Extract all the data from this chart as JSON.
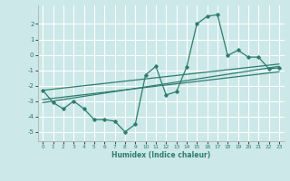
{
  "xlabel": "Humidex (Indice chaleur)",
  "background_color": "#cce8e8",
  "grid_color": "#ffffff",
  "line_color": "#2e7d6e",
  "xlim": [
    -0.5,
    23.5
  ],
  "ylim": [
    -5.6,
    3.2
  ],
  "xticks": [
    0,
    1,
    2,
    3,
    4,
    5,
    6,
    7,
    8,
    9,
    10,
    11,
    12,
    13,
    14,
    15,
    16,
    17,
    18,
    19,
    20,
    21,
    22,
    23
  ],
  "yticks": [
    -5,
    -4,
    -3,
    -2,
    -1,
    0,
    1,
    2
  ],
  "series1_x": [
    0,
    1,
    2,
    3,
    4,
    5,
    6,
    7,
    8,
    9,
    10,
    11,
    12,
    13,
    14,
    15,
    16,
    17,
    18,
    19,
    20,
    21,
    22,
    23
  ],
  "series1_y": [
    -2.3,
    -3.1,
    -3.5,
    -3.0,
    -3.5,
    -4.2,
    -4.2,
    -4.3,
    -5.0,
    -4.5,
    -1.3,
    -0.75,
    -2.6,
    -2.4,
    -0.8,
    2.0,
    2.5,
    2.6,
    -0.05,
    0.3,
    -0.15,
    -0.15,
    -0.9,
    -0.85
  ],
  "trend1_x": [
    0,
    23
  ],
  "trend1_y": [
    -3.1,
    -0.75
  ],
  "trend2_x": [
    0,
    23
  ],
  "trend2_y": [
    -2.9,
    -1.1
  ],
  "trend3_x": [
    0,
    23
  ],
  "trend3_y": [
    -2.3,
    -0.6
  ]
}
